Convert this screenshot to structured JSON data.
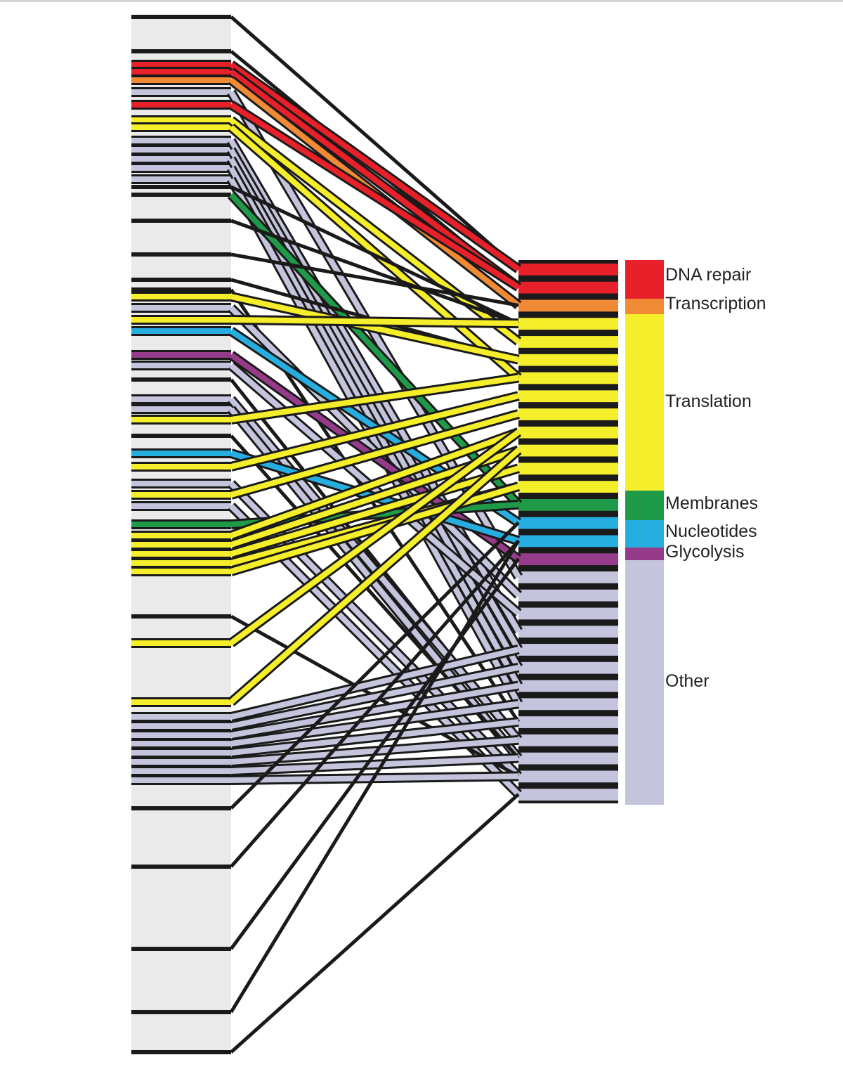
{
  "colors": {
    "dna_repair": "#e8202a",
    "transcription": "#f08a34",
    "translation": "#f5ee2a",
    "membranes": "#1f9a48",
    "nucleotides": "#27aee0",
    "glycolysis": "#963b8a",
    "other": "#c4c4dd",
    "connector": "#1a1a1a",
    "left_column": "#eaeaea"
  },
  "categories": [
    {
      "key": "dna_repair",
      "label": "DNA repair",
      "color": "#e8202a"
    },
    {
      "key": "transcription",
      "label": "Transcription",
      "color": "#f08a34"
    },
    {
      "key": "translation",
      "label": "Translation",
      "color": "#f5ee2a"
    },
    {
      "key": "membranes",
      "label": "Membranes",
      "color": "#1f9a48"
    },
    {
      "key": "nucleotides",
      "label": "Nucleotides",
      "color": "#27aee0"
    },
    {
      "key": "glycolysis",
      "label": "Glycolysis",
      "color": "#963b8a"
    },
    {
      "key": "other",
      "label": "Other",
      "color": "#c4c4dd"
    }
  ]
}
